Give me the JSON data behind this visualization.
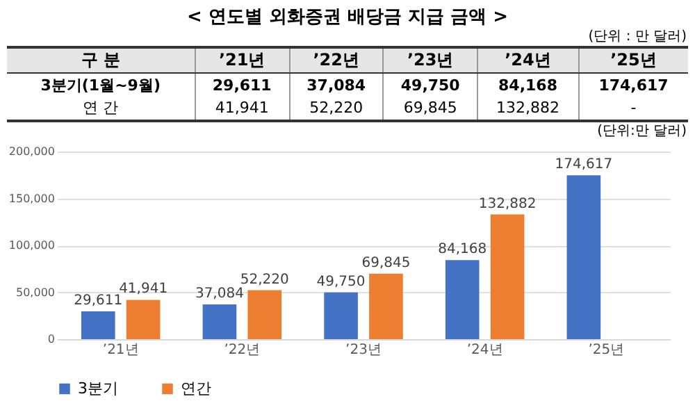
{
  "chart_data": {
    "type": "bar",
    "title": "< 연도별 외화증권 배당금 지급 금액 >",
    "annotations": [
      "(단위 : 만 달러)",
      "구 분",
      "3분기(1월~9월)",
      "연 간",
      "-",
      "(단위:만 달러)"
    ],
    "categories": [
      "’21년",
      "’22년",
      "’23년",
      "’24년",
      "’25년"
    ],
    "series": [
      {
        "name": "3분기",
        "color": "#4472c4",
        "values": [
          29611,
          37084,
          49750,
          84168,
          174617
        ],
        "value_labels": [
          "29,611",
          "37,084",
          "49,750",
          "84,168",
          "174,617"
        ]
      },
      {
        "name": "연간",
        "color": "#ed7d31",
        "values": [
          41941,
          52220,
          69845,
          132882,
          null
        ],
        "value_labels": [
          "41,941",
          "52,220",
          "69,845",
          "132,882",
          null
        ]
      }
    ],
    "ylim": [
      0,
      200000
    ],
    "yticks": [
      {
        "value": 0,
        "label": "0"
      },
      {
        "value": 50000,
        "label": "50,000"
      },
      {
        "value": 100000,
        "label": "100,000"
      },
      {
        "value": 150000,
        "label": "150,000"
      },
      {
        "value": 200000,
        "label": "200,000"
      }
    ],
    "grid": "y",
    "legend": "bottom"
  }
}
